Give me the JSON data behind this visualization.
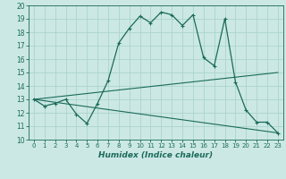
{
  "xlabel": "Humidex (Indice chaleur)",
  "xlim": [
    -0.5,
    23.5
  ],
  "ylim": [
    10,
    20
  ],
  "xticks": [
    0,
    1,
    2,
    3,
    4,
    5,
    6,
    7,
    8,
    9,
    10,
    11,
    12,
    13,
    14,
    15,
    16,
    17,
    18,
    19,
    20,
    21,
    22,
    23
  ],
  "yticks": [
    10,
    11,
    12,
    13,
    14,
    15,
    16,
    17,
    18,
    19,
    20
  ],
  "bg_color": "#cce8e4",
  "grid_color": "#aad4ce",
  "line_color": "#1a6b5a",
  "line1_x": [
    0,
    1,
    2,
    3,
    4,
    5,
    6,
    7,
    8,
    9,
    10,
    11,
    12,
    13,
    14,
    15,
    16,
    17,
    18,
    19,
    20,
    21,
    22,
    23
  ],
  "line1_y": [
    13.0,
    12.5,
    12.7,
    13.0,
    11.9,
    11.2,
    12.7,
    14.4,
    17.2,
    18.3,
    19.2,
    18.7,
    19.5,
    19.3,
    18.5,
    19.3,
    16.1,
    15.5,
    19.0,
    14.3,
    12.2,
    11.3,
    11.3,
    10.5
  ],
  "line2_x": [
    0,
    23
  ],
  "line2_y": [
    13.0,
    15.0
  ],
  "line3_x": [
    0,
    23
  ],
  "line3_y": [
    13.0,
    10.5
  ],
  "marker": "+"
}
